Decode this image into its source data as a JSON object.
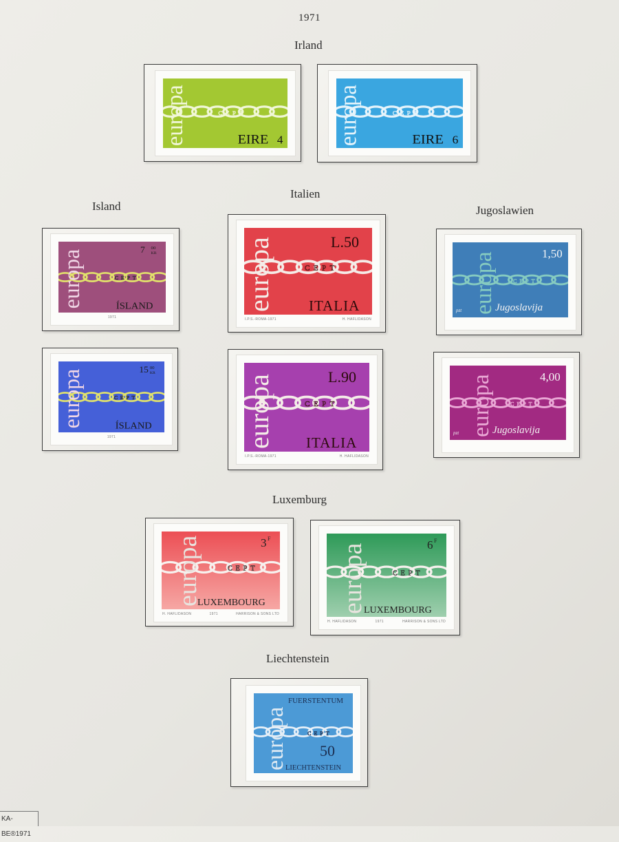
{
  "page": {
    "year": "1971",
    "footer_label": "KA-BE®1971"
  },
  "sections": {
    "irland": "Irland",
    "italien": "Italien",
    "island": "Island",
    "jugoslawien": "Jugoslawien",
    "luxemburg": "Luxemburg",
    "liechtenstein": "Liechtenstein"
  },
  "common": {
    "europa_word": "europa",
    "cept_word": "CEPT"
  },
  "stamps": {
    "eire4": {
      "country": "EIRE",
      "value": "4",
      "color": "#a3c832"
    },
    "eire6": {
      "country": "EIRE",
      "value": "6",
      "color": "#3aa6e0"
    },
    "island7": {
      "country": "ÍSLAND",
      "value": "7",
      "value_small": "00",
      "currency": "KR",
      "imprint": "1971",
      "color": "#9e4f7c"
    },
    "island15": {
      "country": "ÍSLAND",
      "value": "15",
      "value_small": "00",
      "currency": "KR",
      "imprint": "1971",
      "color": "#4560d8"
    },
    "italia50": {
      "country": "ITALIA",
      "value": "L.50",
      "imprint_left": "I.P.S.-ROMA-1971",
      "imprint_right": "H. HAFLIDASON",
      "color": "#e2424a"
    },
    "italia90": {
      "country": "ITALIA",
      "value": "L.90",
      "imprint_left": "I.P.S.-ROMA-1971",
      "imprint_right": "H. HAFLIDASON",
      "color": "#a640ae"
    },
    "jugo150": {
      "country": "Jugoslavija",
      "value": "1,50",
      "prefix": "pzt",
      "color": "#3f7eb8"
    },
    "jugo400": {
      "country": "Jugoslavija",
      "value": "4,00",
      "prefix": "pzt",
      "color": "#a22a82"
    },
    "lux3": {
      "country": "LUXEMBOURG",
      "value": "3",
      "value_sup": "F",
      "imprint_left": "H. HAFLIDASON",
      "imprint_mid": "1971",
      "imprint_right": "HARRISON & SONS LTD",
      "color_top": "#ec4f55",
      "color_bottom": "#f6a7a4"
    },
    "lux6": {
      "country": "LUXEMBOURG",
      "value": "6",
      "value_sup": "F",
      "imprint_left": "H. HAFLIDASON",
      "imprint_mid": "1971",
      "imprint_right": "HARRISON & SONS LTD",
      "color_top": "#2e9a58",
      "color_bottom": "#9fcfae"
    },
    "fl50": {
      "country_top": "FUERSTENTUM",
      "country_bottom": "LIECHTENSTEIN",
      "value": "50",
      "color": "#4c9ad6"
    }
  }
}
